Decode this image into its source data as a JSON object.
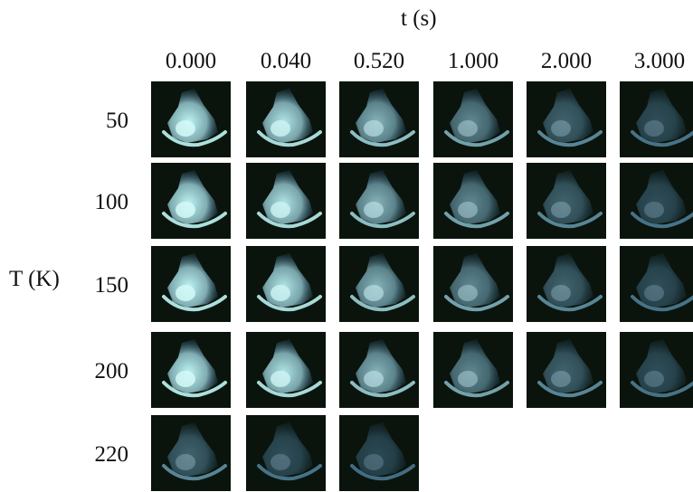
{
  "axis_x_label": "t (s)",
  "axis_y_label": "T (K)",
  "times": [
    "0.000",
    "0.040",
    "0.520",
    "1.000",
    "2.000",
    "3.000"
  ],
  "temperatures": [
    "50",
    "100",
    "150",
    "200",
    "220"
  ],
  "images_per_row": [
    6,
    6,
    6,
    6,
    3
  ],
  "glow_color": "#bff6f4",
  "dim_color": "#2e5a7a",
  "background_color": "#0a140c"
}
